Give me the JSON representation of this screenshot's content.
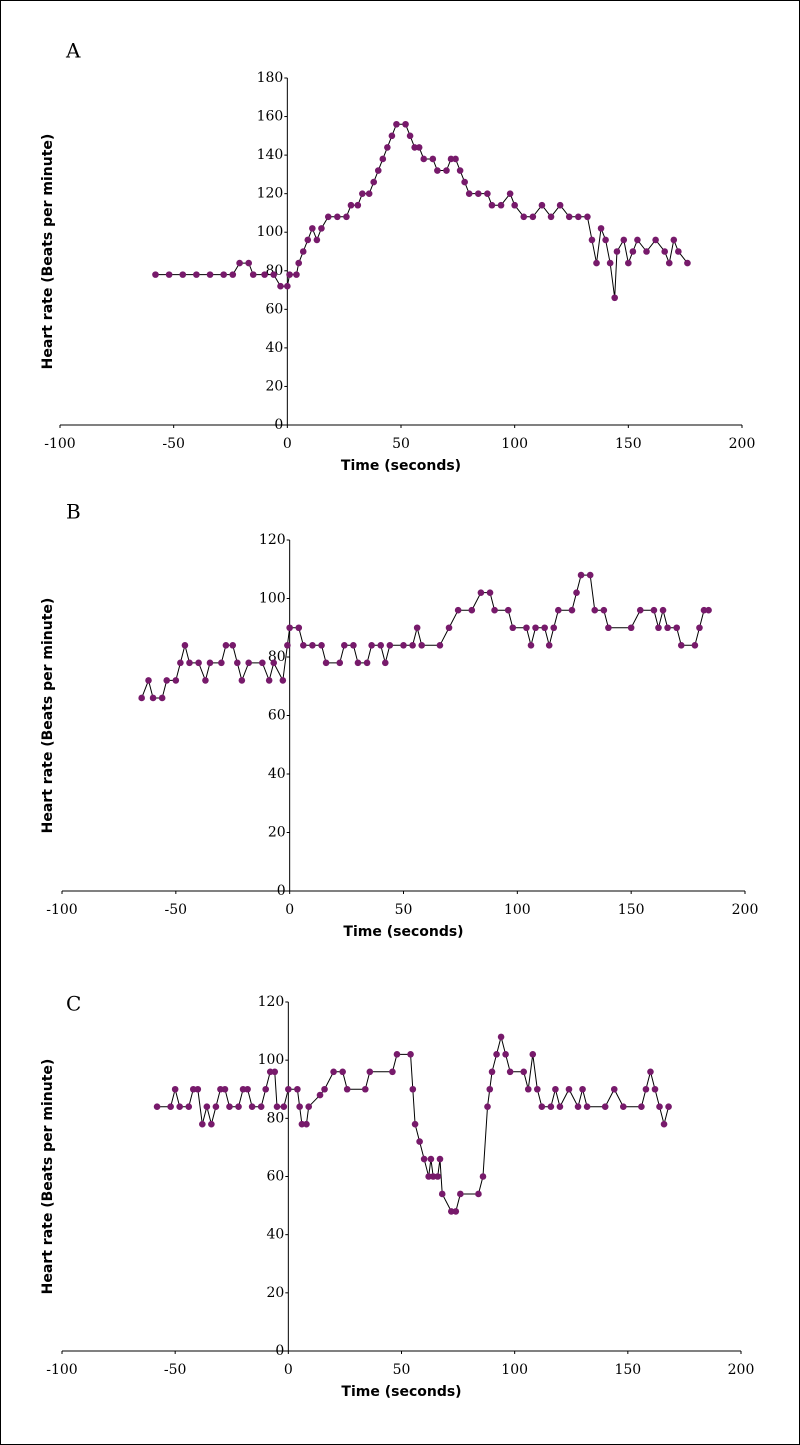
{
  "chart_data": [
    {
      "type": "line",
      "title": "A",
      "x_label": "Time (seconds)",
      "y_label": "Heart rate (Beats per minute)",
      "marker_color": "#771a6b",
      "line_color": "#000000",
      "xlim": [
        -100,
        200
      ],
      "xticks": [
        -100,
        -50,
        0,
        50,
        100,
        150,
        200
      ],
      "ylim": [
        0,
        180
      ],
      "yticks": [
        0,
        20,
        40,
        60,
        80,
        100,
        120,
        140,
        160,
        180
      ],
      "x": [
        -58,
        -52,
        -46,
        -40,
        -34,
        -28,
        -24,
        -21,
        -17,
        -15,
        -10,
        -6,
        -3,
        0,
        1,
        4,
        5,
        7,
        9,
        11,
        13,
        15,
        18,
        22,
        26,
        28,
        31,
        33,
        36,
        38,
        40,
        42,
        44,
        46,
        48,
        52,
        54,
        56,
        58,
        60,
        64,
        66,
        70,
        72,
        74,
        76,
        78,
        80,
        84,
        88,
        90,
        94,
        98,
        100,
        104,
        108,
        112,
        116,
        120,
        124,
        128,
        132,
        134,
        136,
        138,
        140,
        142,
        144,
        145,
        148,
        150,
        152,
        154,
        158,
        162,
        166,
        168,
        170,
        172,
        176
      ],
      "values": [
        78,
        78,
        78,
        78,
        78,
        78,
        78,
        84,
        84,
        78,
        78,
        78,
        72,
        72,
        78,
        78,
        84,
        90,
        96,
        102,
        96,
        102,
        108,
        108,
        108,
        114,
        114,
        120,
        120,
        126,
        132,
        138,
        144,
        150,
        156,
        156,
        150,
        144,
        144,
        138,
        138,
        132,
        132,
        138,
        138,
        132,
        126,
        120,
        120,
        120,
        114,
        114,
        120,
        114,
        108,
        108,
        114,
        108,
        114,
        108,
        108,
        108,
        96,
        84,
        102,
        96,
        84,
        66,
        90,
        96,
        84,
        90,
        96,
        90,
        96,
        90,
        84,
        96,
        90,
        84
      ]
    },
    {
      "type": "line",
      "title": "B",
      "x_label": "Time (seconds)",
      "y_label": "Heart rate (Beats per minute)",
      "marker_color": "#771a6b",
      "line_color": "#000000",
      "xlim": [
        -100,
        200
      ],
      "xticks": [
        -100,
        -50,
        0,
        50,
        100,
        150,
        200
      ],
      "ylim": [
        0,
        120
      ],
      "yticks": [
        0,
        20,
        40,
        60,
        80,
        100,
        120
      ],
      "x": [
        -65,
        -62,
        -60,
        -56,
        -54,
        -50,
        -48,
        -46,
        -44,
        -40,
        -37,
        -35,
        -30,
        -28,
        -25,
        -23,
        -21,
        -18,
        -12,
        -9,
        -7,
        -3,
        -1,
        0,
        4,
        6,
        10,
        14,
        16,
        22,
        24,
        28,
        30,
        34,
        36,
        40,
        42,
        44,
        50,
        54,
        56,
        58,
        66,
        70,
        74,
        80,
        84,
        88,
        90,
        96,
        98,
        104,
        106,
        108,
        112,
        114,
        116,
        118,
        124,
        126,
        128,
        132,
        134,
        138,
        140,
        150,
        154,
        160,
        162,
        164,
        166,
        170,
        172,
        178,
        180,
        182,
        184
      ],
      "values": [
        66,
        72,
        66,
        66,
        72,
        72,
        78,
        84,
        78,
        78,
        72,
        78,
        78,
        84,
        84,
        78,
        72,
        78,
        78,
        72,
        78,
        72,
        84,
        90,
        90,
        84,
        84,
        84,
        78,
        78,
        84,
        84,
        78,
        78,
        84,
        84,
        78,
        84,
        84,
        84,
        90,
        84,
        84,
        90,
        96,
        96,
        102,
        102,
        96,
        96,
        90,
        90,
        84,
        90,
        90,
        84,
        90,
        96,
        96,
        102,
        108,
        108,
        96,
        96,
        90,
        90,
        96,
        96,
        90,
        96,
        90,
        90,
        84,
        84,
        90,
        96,
        96
      ]
    },
    {
      "type": "line",
      "title": "C",
      "x_label": "Time (seconds)",
      "y_label": "Heart rate (Beats per minute)",
      "marker_color": "#771a6b",
      "line_color": "#000000",
      "xlim": [
        -100,
        200
      ],
      "xticks": [
        -100,
        -50,
        0,
        50,
        100,
        150,
        200
      ],
      "ylim": [
        0,
        120
      ],
      "yticks": [
        0,
        20,
        40,
        60,
        80,
        100,
        120
      ],
      "x": [
        -58,
        -52,
        -50,
        -48,
        -44,
        -42,
        -40,
        -38,
        -36,
        -34,
        -32,
        -30,
        -28,
        -26,
        -22,
        -20,
        -18,
        -16,
        -12,
        -10,
        -8,
        -6,
        -5,
        -2,
        0,
        4,
        5,
        6,
        8,
        9,
        14,
        16,
        20,
        24,
        26,
        34,
        36,
        46,
        48,
        54,
        55,
        56,
        58,
        60,
        62,
        63,
        64,
        66,
        67,
        68,
        72,
        74,
        76,
        84,
        86,
        88,
        89,
        90,
        92,
        94,
        96,
        98,
        104,
        106,
        108,
        110,
        112,
        116,
        118,
        120,
        124,
        128,
        130,
        132,
        140,
        144,
        148,
        156,
        158,
        160,
        162,
        164,
        166,
        168
      ],
      "values": [
        84,
        84,
        90,
        84,
        84,
        90,
        90,
        78,
        84,
        78,
        84,
        90,
        90,
        84,
        84,
        90,
        90,
        84,
        84,
        90,
        96,
        96,
        84,
        84,
        90,
        90,
        84,
        78,
        78,
        84,
        88,
        90,
        96,
        96,
        90,
        90,
        96,
        96,
        102,
        102,
        90,
        78,
        72,
        66,
        60,
        66,
        60,
        60,
        66,
        54,
        48,
        48,
        54,
        54,
        60,
        84,
        90,
        96,
        102,
        108,
        102,
        96,
        96,
        90,
        102,
        90,
        84,
        84,
        90,
        84,
        90,
        84,
        90,
        84,
        84,
        90,
        84,
        84,
        90,
        96,
        90,
        84,
        78,
        84
      ]
    }
  ]
}
